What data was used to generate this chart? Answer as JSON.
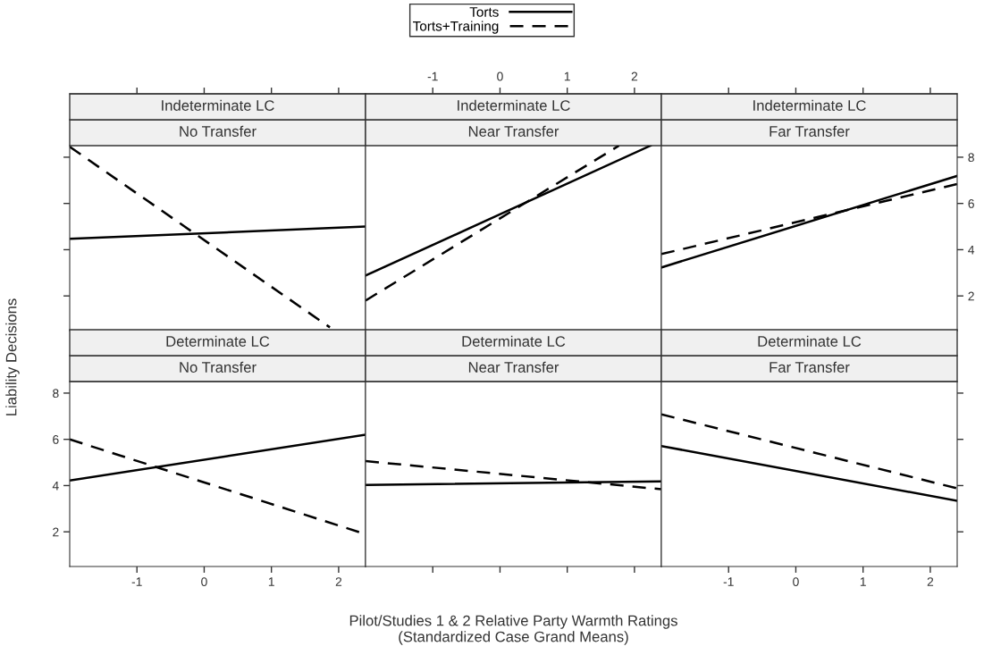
{
  "chart_data": [
    {
      "type": "line",
      "title": "Indeterminate LC",
      "subtitle": "No Transfer",
      "legend": "top",
      "tick_labels": false,
      "xlim": [
        -2,
        2.4
      ],
      "ylim": [
        0.5,
        8.5
      ],
      "series": [
        {
          "name": "Torts",
          "color": "#000000",
          "line_style": "solid",
          "x": [
            -2,
            2.4
          ],
          "values": [
            4.47,
            5.0
          ]
        },
        {
          "name": "Torts+Training",
          "color": "#000000",
          "line_style": "dashed",
          "x": [
            -2,
            1.87
          ],
          "values": [
            8.45,
            0.64
          ]
        }
      ]
    },
    {
      "type": "line",
      "title": "Indeterminate LC",
      "subtitle": "Near Transfer",
      "tick_labels": "x",
      "xlim": [
        -2,
        2.4
      ],
      "ylim": [
        0.5,
        8.5
      ],
      "xticks": [
        -1,
        0,
        1,
        2
      ],
      "series": [
        {
          "color": "#000000",
          "line_style": "solid",
          "x": [
            -2,
            2.24
          ],
          "values": [
            2.88,
            8.5
          ]
        },
        {
          "color": "#000000",
          "line_style": "dashed",
          "x": [
            -2,
            1.77
          ],
          "values": [
            1.8,
            8.5
          ]
        }
      ]
    },
    {
      "type": "line",
      "title": "Indeterminate LC",
      "subtitle": "Far Transfer",
      "tick_labels": "y",
      "xlim": [
        -2,
        2.4
      ],
      "ylim": [
        0.5,
        8.5
      ],
      "yticks": [
        2,
        4,
        6,
        8
      ],
      "series": [
        {
          "color": "#000000",
          "line_style": "solid",
          "x": [
            -2,
            2.4
          ],
          "values": [
            3.23,
            7.19
          ]
        },
        {
          "color": "#000000",
          "line_style": "dashed",
          "x": [
            -2,
            2.4
          ],
          "values": [
            3.81,
            6.84
          ]
        }
      ]
    },
    {
      "type": "line",
      "title": "Determinate LC",
      "subtitle": "No Transfer",
      "ylabel": "Liability Decisions",
      "xlim": [
        -2,
        2.4
      ],
      "ylim": [
        0.5,
        8.5
      ],
      "xticks": [
        -1,
        0,
        1,
        2
      ],
      "yticks": [
        2,
        4,
        6,
        8
      ],
      "series": [
        {
          "color": "#000000",
          "line_style": "solid",
          "x": [
            -2,
            2.4
          ],
          "values": [
            4.22,
            6.2
          ]
        },
        {
          "color": "#000000",
          "line_style": "dashed",
          "x": [
            -2,
            2.4
          ],
          "values": [
            6.0,
            1.9
          ]
        }
      ]
    },
    {
      "type": "line",
      "title": "Determinate LC",
      "subtitle": "Near Transfer",
      "xlabel": "Pilot/Studies 1 & 2 Relative Party Warmth Ratings\n(Standardized Case Grand Means)",
      "tick_labels": false,
      "xlim": [
        -2,
        2.4
      ],
      "ylim": [
        0.5,
        8.5
      ],
      "series": [
        {
          "color": "#000000",
          "line_style": "solid",
          "x": [
            -2,
            2.4
          ],
          "values": [
            4.03,
            4.18
          ]
        },
        {
          "color": "#000000",
          "line_style": "dashed",
          "x": [
            -2,
            2.4
          ],
          "values": [
            5.06,
            3.84
          ]
        }
      ]
    },
    {
      "type": "line",
      "title": "Determinate LC",
      "subtitle": "Far Transfer",
      "tick_labels": "x",
      "xlim": [
        -2,
        2.4
      ],
      "ylim": [
        0.5,
        8.5
      ],
      "xticks": [
        -1,
        0,
        1,
        2
      ],
      "series": [
        {
          "color": "#000000",
          "line_style": "solid",
          "x": [
            -2,
            2.4
          ],
          "values": [
            5.71,
            3.34
          ]
        },
        {
          "color": "#000000",
          "line_style": "dashed",
          "x": [
            -2,
            2.4
          ],
          "values": [
            7.08,
            3.88
          ]
        }
      ]
    }
  ]
}
